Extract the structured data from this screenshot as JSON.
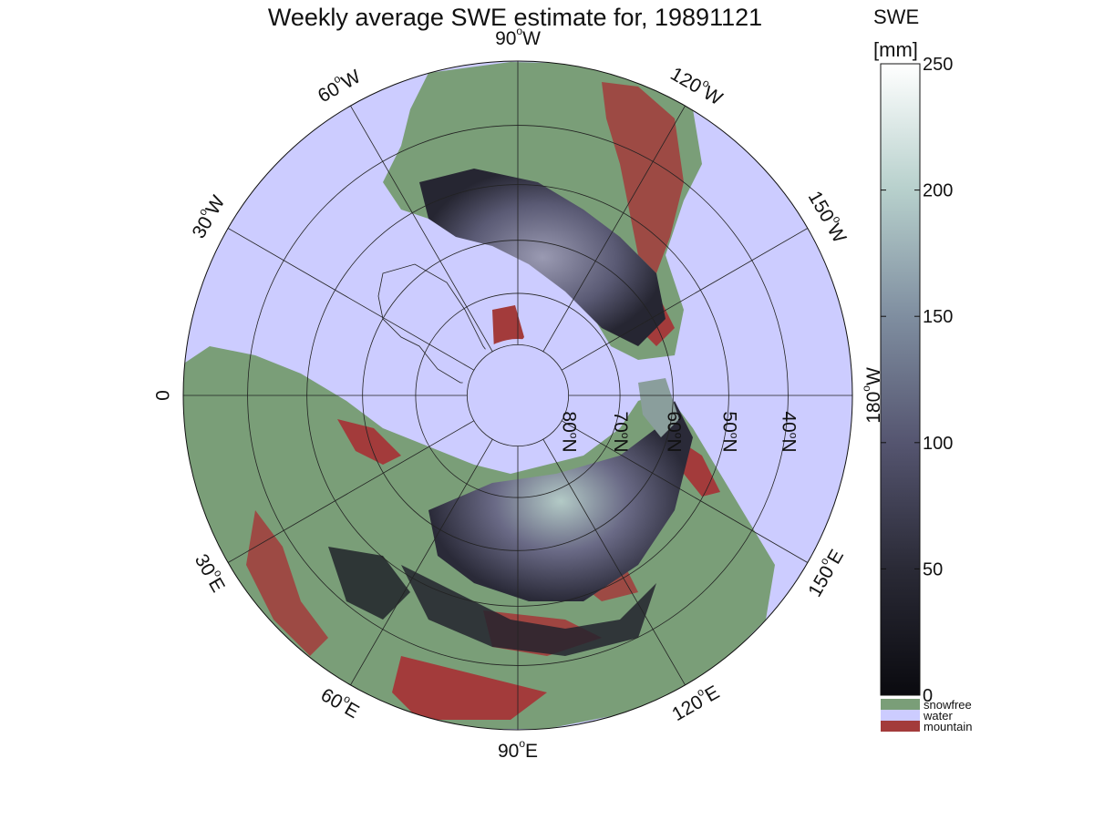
{
  "title": "Weekly average SWE estimate for, 19891121",
  "colorbar": {
    "label_line1": "SWE",
    "label_line2": "[mm]",
    "ticks": [
      0,
      50,
      100,
      150,
      200,
      250
    ],
    "range": [
      0,
      250
    ],
    "colors": {
      "low": "#0a0a0f",
      "mid": "#58587a",
      "high": "#ffffff"
    }
  },
  "legend": [
    {
      "name": "snowfree",
      "label": "snowfree",
      "color": "#7a9e78"
    },
    {
      "name": "water",
      "label": "water",
      "color": "#ccccff"
    },
    {
      "name": "mountain",
      "label": "mountain",
      "color": "#a33b3b"
    }
  ],
  "map": {
    "projection": "north-polar-stereographic",
    "lon_labels": [
      {
        "lon": 90,
        "hemi": "W",
        "text": "90",
        "suffix": "W"
      },
      {
        "lon": 120,
        "hemi": "W",
        "text": "120",
        "suffix": "W"
      },
      {
        "lon": 150,
        "hemi": "W",
        "text": "150",
        "suffix": "W"
      },
      {
        "lon": 180,
        "hemi": "W",
        "text": "180",
        "suffix": "W"
      },
      {
        "lon": 150,
        "hemi": "E",
        "text": "150",
        "suffix": "E"
      },
      {
        "lon": 120,
        "hemi": "E",
        "text": "120",
        "suffix": "E"
      },
      {
        "lon": 90,
        "hemi": "E",
        "text": "90",
        "suffix": "E"
      },
      {
        "lon": 60,
        "hemi": "E",
        "text": "60",
        "suffix": "E"
      },
      {
        "lon": 30,
        "hemi": "E",
        "text": "30",
        "suffix": "E"
      },
      {
        "lon": 0,
        "hemi": "",
        "text": "0",
        "suffix": ""
      },
      {
        "lon": 30,
        "hemi": "W",
        "text": "30",
        "suffix": "W"
      },
      {
        "lon": 60,
        "hemi": "W",
        "text": "60",
        "suffix": "W"
      }
    ],
    "lat_labels": [
      {
        "lat": 80,
        "text": "80",
        "suffix": "N"
      },
      {
        "lat": 70,
        "text": "70",
        "suffix": "N"
      },
      {
        "lat": 60,
        "text": "60",
        "suffix": "N"
      },
      {
        "lat": 50,
        "text": "50",
        "suffix": "N"
      },
      {
        "lat": 40,
        "text": "40",
        "suffix": "N"
      }
    ],
    "colors": {
      "water": "#ccccff",
      "land": "#7a9e78",
      "mountain": "#a33b3b",
      "snow_dark": "#1c1c26",
      "snow_mid": "#4a4a62",
      "snow_light": "#8a8aa4",
      "snow_peak": "#a8c4c0"
    }
  }
}
